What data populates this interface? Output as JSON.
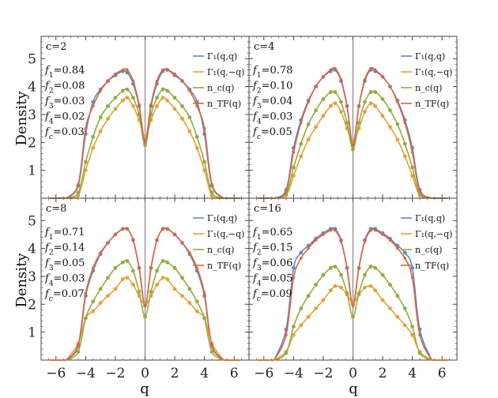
{
  "chart_data": {
    "type": "line",
    "xlabel": "q",
    "ylabel": "Density",
    "xlim": [
      -7,
      7
    ],
    "ylim": [
      0,
      5.8
    ],
    "x_ticks": [
      "-6",
      "-4",
      "-2",
      "0",
      "2",
      "4",
      "6"
    ],
    "y_ticks": [
      "1",
      "2",
      "3",
      "4",
      "5"
    ],
    "grid": false,
    "legend_placement": "top-right",
    "legend": [
      {
        "label": "Γ₁(q,q)",
        "color": "#5b8ac6"
      },
      {
        "label": "Γ₁(q,−q)",
        "color": "#e2a23b"
      },
      {
        "label": "n_c(q)",
        "color": "#8fae3f"
      },
      {
        "label": "n_TF(q)",
        "color": "#e0633a"
      }
    ],
    "panels": [
      {
        "label": "c=2",
        "fractions": [
          [
            "f",
            "1",
            "=0.84"
          ],
          [
            "f",
            "2",
            "=0.08"
          ],
          [
            "f",
            "3",
            "=0.03"
          ],
          [
            "f",
            "4",
            "=0.02"
          ],
          [
            "f",
            "c",
            "=0.03"
          ]
        ],
        "x": [
          -5.3,
          -4.5,
          -4,
          -3.5,
          -3,
          -2.5,
          -2,
          -1.5,
          -1.2,
          -0.8,
          -0.4,
          0,
          0.4,
          0.8,
          1.2,
          1.5,
          2,
          2.5,
          3,
          3.5,
          4,
          4.5,
          5.3
        ],
        "series": [
          {
            "name": "Γ₁(q,q)",
            "values": [
              0,
              0.45,
              2.3,
              3.45,
              3.9,
              4.2,
              4.4,
              4.55,
              4.5,
              4.1,
              3.3,
              2.1,
              3.3,
              4.1,
              4.55,
              4.6,
              4.4,
              4.2,
              3.9,
              3.45,
              2.3,
              0.45,
              0
            ]
          },
          {
            "name": "Γ₁(q,−q)",
            "values": [
              0,
              0.1,
              1.0,
              1.8,
              2.4,
              2.85,
              3.2,
              3.5,
              3.6,
              3.3,
              2.8,
              2.2,
              2.8,
              3.3,
              3.6,
              3.5,
              3.2,
              2.85,
              2.4,
              1.8,
              1.0,
              0.1,
              0
            ]
          },
          {
            "name": "n_c(q)",
            "values": [
              0,
              0.2,
              1.3,
              2.2,
              2.9,
              3.3,
              3.6,
              3.85,
              3.9,
              3.6,
              3.0,
              1.9,
              3.0,
              3.6,
              3.9,
              3.85,
              3.6,
              3.3,
              2.9,
              2.2,
              1.3,
              0.2,
              0
            ]
          },
          {
            "name": "n_TF(q)",
            "values": [
              0,
              0.5,
              2.5,
              3.3,
              3.85,
              4.2,
              4.45,
              4.6,
              4.6,
              4.2,
              3.35,
              2.0,
              3.35,
              4.2,
              4.6,
              4.6,
              4.45,
              4.2,
              3.85,
              3.3,
              2.5,
              0.5,
              0
            ]
          }
        ]
      },
      {
        "label": "c=4",
        "fractions": [
          [
            "f",
            "1",
            "=0.78"
          ],
          [
            "f",
            "2",
            "=0.10"
          ],
          [
            "f",
            "3",
            "=0.04"
          ],
          [
            "f",
            "4",
            "=0.03"
          ],
          [
            "f",
            "c",
            "=0.05"
          ]
        ],
        "x": [
          -5.3,
          -4.5,
          -4,
          -3.5,
          -3,
          -2.5,
          -2,
          -1.5,
          -1.2,
          -0.8,
          -0.4,
          0,
          0.4,
          0.8,
          1.2,
          1.5,
          2,
          2.5,
          3,
          3.5,
          4,
          4.5,
          5.3
        ],
        "series": [
          {
            "name": "Γ₁(q,q)",
            "values": [
              0,
              0.3,
              1.8,
              2.8,
              3.5,
              4.0,
              4.35,
              4.55,
              4.6,
              4.2,
              3.3,
              1.95,
              3.3,
              4.2,
              4.6,
              4.55,
              4.35,
              4.0,
              3.5,
              2.8,
              1.8,
              0.3,
              0
            ]
          },
          {
            "name": "Γ₁(q,−q)",
            "values": [
              0,
              0.1,
              0.8,
              1.5,
              2.1,
              2.55,
              2.95,
              3.3,
              3.4,
              3.1,
              2.5,
              2.0,
              2.5,
              3.1,
              3.4,
              3.3,
              2.95,
              2.55,
              2.1,
              1.5,
              0.8,
              0.1,
              0
            ]
          },
          {
            "name": "n_c(q)",
            "values": [
              0,
              0.15,
              1.1,
              1.95,
              2.65,
              3.15,
              3.55,
              3.8,
              3.8,
              3.45,
              2.7,
              1.75,
              2.7,
              3.45,
              3.8,
              3.8,
              3.55,
              3.15,
              2.65,
              1.95,
              1.1,
              0.15,
              0
            ]
          },
          {
            "name": "n_TF(q)",
            "values": [
              0,
              0.25,
              1.65,
              2.7,
              3.45,
              4.0,
              4.35,
              4.6,
              4.65,
              4.25,
              3.3,
              1.9,
              3.3,
              4.25,
              4.65,
              4.6,
              4.35,
              4.0,
              3.45,
              2.7,
              1.65,
              0.25,
              0
            ]
          }
        ]
      },
      {
        "label": "c=8",
        "fractions": [
          [
            "f",
            "1",
            "=0.71"
          ],
          [
            "f",
            "2",
            "=0.14"
          ],
          [
            "f",
            "3",
            "=0.05"
          ],
          [
            "f",
            "4",
            "=0.03"
          ],
          [
            "f",
            "c",
            "=0.07"
          ]
        ],
        "x": [
          -5.3,
          -4.5,
          -4,
          -3.5,
          -3,
          -2.5,
          -2,
          -1.5,
          -1.2,
          -0.8,
          -0.4,
          0,
          0.4,
          0.8,
          1.2,
          1.5,
          2,
          2.5,
          3,
          3.5,
          4,
          4.5,
          5.3
        ],
        "series": [
          {
            "name": "Γ₁(q,q)",
            "values": [
              0,
              0.5,
              2.3,
              3.2,
              3.8,
              4.2,
              4.5,
              4.7,
              4.7,
              4.3,
              3.3,
              1.95,
              3.3,
              4.3,
              4.7,
              4.7,
              4.5,
              4.2,
              3.8,
              3.2,
              2.3,
              0.5,
              0
            ]
          },
          {
            "name": "Γ₁(q,−q)",
            "values": [
              0,
              0.6,
              1.5,
              1.75,
              2.05,
              2.3,
              2.55,
              2.9,
              2.95,
              2.7,
              2.3,
              2.0,
              2.3,
              2.7,
              2.95,
              2.9,
              2.55,
              2.3,
              2.05,
              1.75,
              1.5,
              0.6,
              0
            ]
          },
          {
            "name": "n_c(q)",
            "values": [
              0,
              0.3,
              1.5,
              2.1,
              2.55,
              2.95,
              3.3,
              3.5,
              3.55,
              3.2,
              2.45,
              1.55,
              2.45,
              3.2,
              3.55,
              3.5,
              3.3,
              2.95,
              2.55,
              2.1,
              1.5,
              0.3,
              0
            ]
          },
          {
            "name": "n_TF(q)",
            "values": [
              0,
              0.55,
              2.4,
              3.3,
              3.85,
              4.2,
              4.5,
              4.7,
              4.7,
              4.3,
              3.3,
              1.95,
              3.3,
              4.3,
              4.7,
              4.7,
              4.5,
              4.2,
              3.85,
              3.3,
              2.4,
              0.55,
              0
            ]
          }
        ]
      },
      {
        "label": "c=16",
        "fractions": [
          [
            "f",
            "1",
            "=0.65"
          ],
          [
            "f",
            "2",
            "=0.15"
          ],
          [
            "f",
            "3",
            "=0.06"
          ],
          [
            "f",
            "4",
            "=0.05"
          ],
          [
            "f",
            "c",
            "=0.09"
          ]
        ],
        "x": [
          -5.3,
          -4.5,
          -4,
          -3.5,
          -3,
          -2.5,
          -2,
          -1.5,
          -1.2,
          -0.8,
          -0.4,
          0,
          0.4,
          0.8,
          1.2,
          1.5,
          2,
          2.5,
          3,
          3.5,
          4,
          4.5,
          5.3
        ],
        "series": [
          {
            "name": "Γ₁(q,q)",
            "values": [
              0,
              1.1,
              3.3,
              3.85,
              4.1,
              4.35,
              4.55,
              4.7,
              4.7,
              4.3,
              3.3,
              2.0,
              3.3,
              4.3,
              4.7,
              4.7,
              4.55,
              4.35,
              4.1,
              3.85,
              3.3,
              1.1,
              0
            ]
          },
          {
            "name": "Γ₁(q,−q)",
            "values": [
              0,
              0.3,
              0.9,
              1.25,
              1.55,
              1.85,
              2.15,
              2.5,
              2.65,
              2.6,
              2.35,
              2.05,
              2.35,
              2.6,
              2.65,
              2.5,
              2.15,
              1.85,
              1.55,
              1.25,
              0.9,
              0.3,
              0
            ]
          },
          {
            "name": "n_c(q)",
            "values": [
              0,
              0.25,
              1.2,
              1.85,
              2.3,
              2.7,
              3.05,
              3.3,
              3.35,
              3.05,
              2.4,
              1.55,
              2.4,
              3.05,
              3.35,
              3.3,
              3.05,
              2.7,
              2.3,
              1.85,
              1.2,
              0.25,
              0
            ]
          },
          {
            "name": "n_TF(q)",
            "values": [
              0,
              0.9,
              2.95,
              3.65,
              4.0,
              4.3,
              4.5,
              4.65,
              4.65,
              4.25,
              3.3,
              1.95,
              3.3,
              4.25,
              4.65,
              4.65,
              4.5,
              4.3,
              4.0,
              3.65,
              2.95,
              0.9,
              0
            ]
          }
        ]
      }
    ]
  }
}
